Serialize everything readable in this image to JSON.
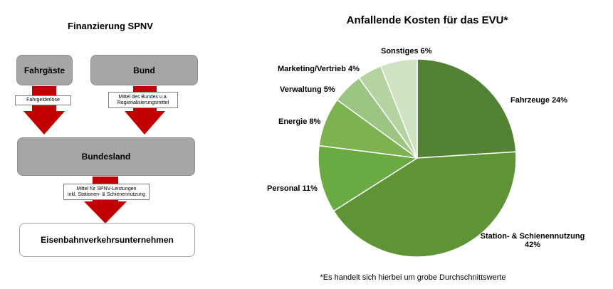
{
  "flow": {
    "title": "Finanzierung SPNV",
    "fahrgaeste": "Fahrgäste",
    "bund": "Bund",
    "note_fahrgelderloese": "Fahrgelderlöse",
    "note_bund_line1": "Mittel des Bundes u.a.",
    "note_bund_line2": "Regionalisierungsmittel",
    "bundesland": "Bundesland",
    "note_land_line1": "Mittel für SPNV-Leistungen",
    "note_land_line2": "inkl. Stationen- & Schienennutzung",
    "evu": "Eisenbahnverkehrsunternehmen",
    "arrow_color": "#c00000"
  },
  "footnote": "*Es handelt sich hierbei um grobe Durchschnittswerte",
  "chart_data": {
    "type": "pie",
    "title": "Anfallende Kosten für das EVU*",
    "slices": [
      {
        "label": "Fahrzeuge 24%",
        "value": 24,
        "color": "#548235"
      },
      {
        "label": "Station- & Schienennutzung",
        "label2": "42%",
        "value": 42,
        "color": "#5e9436"
      },
      {
        "label": "Personal  11%",
        "value": 11,
        "color": "#6aaa42"
      },
      {
        "label": "Energie  8%",
        "value": 8,
        "color": "#7cb350"
      },
      {
        "label": "Verwaltung 5%",
        "value": 5,
        "color": "#9cc583"
      },
      {
        "label": "Marketing/Vertrieb  4%",
        "value": 4,
        "color": "#b5d3a0"
      },
      {
        "label": "Sonstiges 6%",
        "value": 6,
        "color": "#cfe2c2"
      }
    ]
  }
}
